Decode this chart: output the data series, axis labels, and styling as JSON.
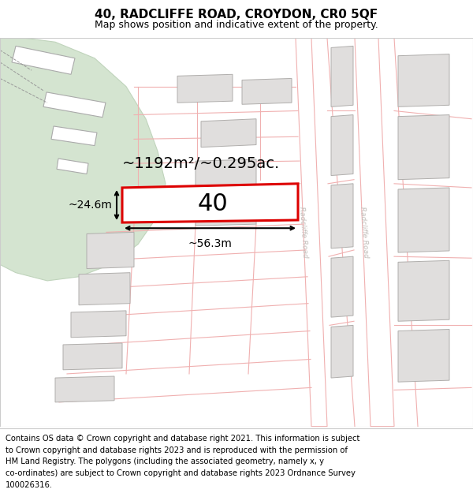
{
  "title": "40, RADCLIFFE ROAD, CROYDON, CR0 5QF",
  "subtitle": "Map shows position and indicative extent of the property.",
  "footer_lines": [
    "Contains OS data © Crown copyright and database right 2021. This information is subject",
    "to Crown copyright and database rights 2023 and is reproduced with the permission of",
    "HM Land Registry. The polygons (including the associated geometry, namely x, y",
    "co-ordinates) are subject to Crown copyright and database rights 2023 Ordnance Survey",
    "100026316."
  ],
  "area_label": "~1192m²/~0.295ac.",
  "width_label": "~56.3m",
  "height_label": "~24.6m",
  "plot_number": "40",
  "map_bg": "#f7f6f3",
  "road_color": "#ffffff",
  "road_border_color": "#f0b0b0",
  "plot_fill": "#ffffff",
  "plot_border": "#dd0000",
  "building_fill": "#e0dedd",
  "building_border": "#b0aeac",
  "green_fill": "#d4e4d0",
  "green_border": "#c0d4bc",
  "road_label_color": "#c0bcb8",
  "title_fontsize": 11,
  "subtitle_fontsize": 9,
  "footer_fontsize": 7.2,
  "area_fontsize": 14,
  "dim_fontsize": 10,
  "plot_num_fontsize": 22
}
